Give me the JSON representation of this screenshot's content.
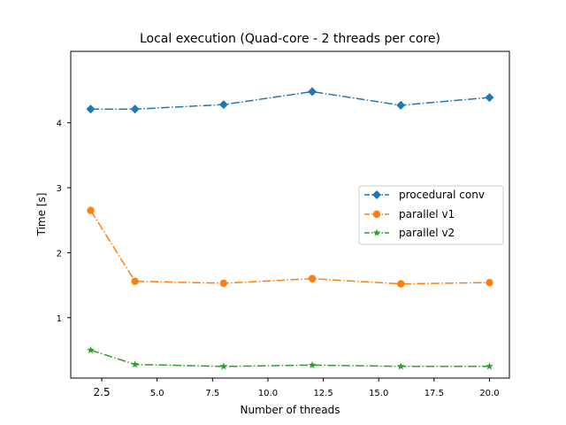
{
  "chart_data": {
    "type": "line",
    "title": "Local execution (Quad-core - 2 threads per core)",
    "xlabel": "Number of threads",
    "ylabel": "Time [s]",
    "xlim": [
      1.1,
      20.9
    ],
    "ylim": [
      0.07,
      5.1
    ],
    "xticks": [
      2.5,
      5.0,
      7.5,
      10.0,
      12.5,
      15.0,
      17.5,
      20.0
    ],
    "xtick_labels": [
      "2.5",
      "5.0",
      "7.5",
      "10.0",
      "12.5",
      "15.0",
      "17.5",
      "20.0"
    ],
    "yticks": [
      1,
      2,
      3,
      4
    ],
    "ytick_labels": [
      "1",
      "2",
      "3",
      "4"
    ],
    "grid": false,
    "legend_position": "center-right",
    "x": [
      2,
      4,
      8,
      12,
      16,
      20
    ],
    "series": [
      {
        "name": "procedural conv",
        "values": [
          4.21,
          4.21,
          4.28,
          4.48,
          4.27,
          4.39
        ],
        "color": "#1f77b4",
        "marker": "diamond",
        "linestyle": "dashdot"
      },
      {
        "name": "parallel v1",
        "values": [
          2.65,
          1.56,
          1.53,
          1.6,
          1.52,
          1.54
        ],
        "color": "#ff7f0e",
        "marker": "circle",
        "linestyle": "dashdot"
      },
      {
        "name": "parallel v2",
        "values": [
          0.5,
          0.28,
          0.25,
          0.27,
          0.25,
          0.25
        ],
        "color": "#2ca02c",
        "marker": "star",
        "linestyle": "dashdot"
      }
    ]
  }
}
